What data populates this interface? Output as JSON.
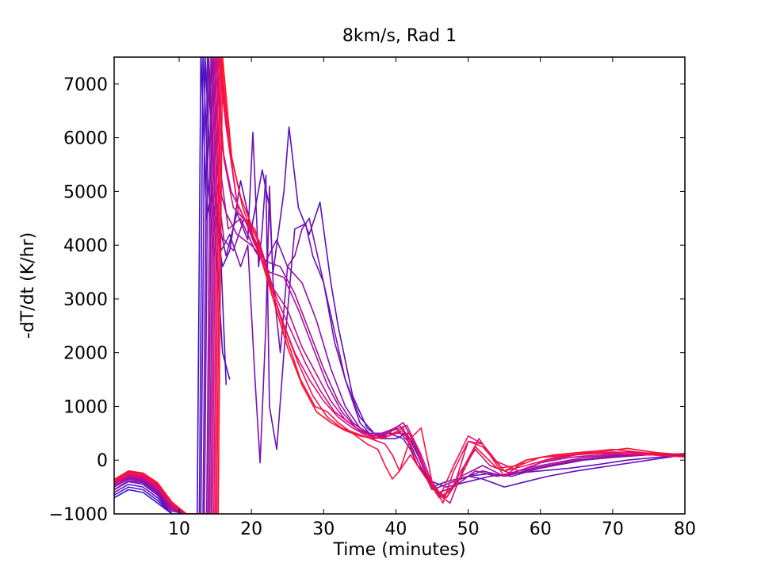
{
  "chart_data": {
    "type": "line",
    "title": "8km/s, Rad 1",
    "xlabel": "Time (minutes)",
    "ylabel": "-dT/dt (K/hr)",
    "xlim": [
      1,
      80
    ],
    "ylim": [
      -1000,
      7500
    ],
    "xticks": [
      10,
      20,
      30,
      40,
      50,
      60,
      70,
      80
    ],
    "yticks": [
      -1000,
      0,
      1000,
      2000,
      3000,
      4000,
      5000,
      6000,
      7000
    ],
    "xtick_labels": [
      "10",
      "20",
      "30",
      "40",
      "50",
      "60",
      "70",
      "80"
    ],
    "ytick_labels": [
      "−1000",
      "0",
      "1000",
      "2000",
      "3000",
      "4000",
      "5000",
      "6000",
      "7000"
    ],
    "grid": false,
    "legend": "none",
    "color_gradient": [
      "#3a10d0",
      "#7a10b8",
      "#ff1010"
    ],
    "series": [
      {
        "color": "#3a10d0",
        "x": [
          1,
          3,
          5,
          7,
          9,
          11,
          12.5,
          13,
          13.8,
          14.5,
          15.2,
          16,
          17
        ],
        "y": [
          -700,
          -550,
          -600,
          -800,
          -1000,
          -1200,
          -1000,
          7600,
          4500,
          5000,
          3800,
          2000,
          1500
        ]
      },
      {
        "color": "#4a10c8",
        "x": [
          1,
          3,
          5,
          7,
          9,
          11,
          12.8,
          13.3,
          14,
          14.8,
          15.5,
          16.5
        ],
        "y": [
          -650,
          -500,
          -550,
          -750,
          -1000,
          -1150,
          -1000,
          7600,
          5200,
          3800,
          4600,
          1400
        ]
      },
      {
        "color": "#5a10c2",
        "x": [
          1,
          3,
          5,
          7,
          9,
          11,
          13,
          13.6,
          14.4,
          15.2,
          16,
          17,
          18.5,
          20,
          21.5,
          22.5,
          23,
          24.5,
          25.2,
          26.5,
          28,
          29.5,
          31,
          32,
          34,
          36,
          38,
          40,
          41.5,
          43,
          45,
          47,
          50,
          52,
          55,
          58,
          61,
          65,
          70,
          75,
          80
        ],
        "y": [
          -600,
          -450,
          -500,
          -700,
          -1000,
          -1100,
          -1000,
          7500,
          5200,
          4300,
          3600,
          3900,
          5200,
          4300,
          5400,
          4700,
          3500,
          5000,
          6200,
          4700,
          4200,
          4800,
          3300,
          2500,
          1200,
          600,
          400,
          400,
          500,
          100,
          -500,
          -400,
          -300,
          -350,
          -500,
          -400,
          -300,
          -200,
          -100,
          0,
          100
        ]
      },
      {
        "color": "#6a10b8",
        "x": [
          1,
          3,
          5,
          7,
          9,
          11,
          13.3,
          13.9,
          14.7,
          15.5,
          16.5,
          18,
          19.5,
          20.2,
          21,
          21.5,
          22,
          22.5,
          23.5,
          24.5,
          26,
          27.5,
          28.5,
          30,
          31.5,
          33,
          35,
          37,
          39,
          41,
          42,
          43,
          45,
          47,
          50,
          53,
          56,
          60,
          64,
          68,
          72,
          76,
          80
        ],
        "y": [
          -550,
          -400,
          -450,
          -650,
          -1000,
          -1050,
          -1000,
          7500,
          5400,
          4400,
          3800,
          4600,
          4100,
          6100,
          3600,
          4300,
          5300,
          1000,
          200,
          2000,
          4300,
          4400,
          3800,
          3300,
          2200,
          1500,
          800,
          500,
          500,
          400,
          200,
          -100,
          -400,
          -500,
          -400,
          -300,
          -250,
          -200,
          -150,
          -80,
          0,
          50,
          100
        ]
      },
      {
        "color": "#7a10b0",
        "x": [
          1,
          3,
          5,
          7,
          9,
          11,
          13.5,
          14.1,
          14.9,
          15.8,
          17,
          18.5,
          19.5,
          20.5,
          21.2,
          22,
          22.5,
          23,
          24,
          25,
          26,
          27,
          28,
          29,
          31,
          33,
          35,
          37,
          39,
          41,
          42.5,
          44,
          46,
          48,
          50,
          52,
          55,
          58,
          62,
          66,
          70,
          75,
          80
        ],
        "y": [
          -550,
          -380,
          -420,
          -620,
          -1000,
          -1000,
          -1000,
          7500,
          5000,
          3900,
          4200,
          3600,
          4000,
          1500,
          -50,
          2500,
          5100,
          3300,
          2000,
          3600,
          3800,
          4300,
          4500,
          3900,
          2700,
          1500,
          700,
          400,
          500,
          500,
          300,
          -200,
          -600,
          -500,
          -300,
          -200,
          -300,
          -200,
          -100,
          0,
          50,
          100,
          80
        ]
      },
      {
        "color": "#8a10a8",
        "x": [
          1,
          3,
          5,
          7,
          9,
          11,
          13.8,
          14.4,
          15.2,
          16.2,
          17.5,
          19,
          20.5,
          22,
          23.5,
          25,
          27,
          29,
          31,
          33,
          35,
          37,
          39,
          41,
          43,
          45,
          47,
          50,
          53,
          56,
          60,
          65,
          70,
          75,
          80
        ],
        "y": [
          -500,
          -350,
          -400,
          -600,
          -950,
          -1000,
          -1000,
          7500,
          5200,
          4100,
          3900,
          4500,
          4000,
          3700,
          4100,
          3600,
          3300,
          2600,
          1700,
          1000,
          600,
          450,
          450,
          550,
          0,
          -550,
          -450,
          -300,
          -250,
          -300,
          -150,
          0,
          80,
          100,
          120
        ]
      },
      {
        "color": "#9a10a0",
        "x": [
          1,
          3,
          5,
          7,
          9,
          11,
          14,
          14.6,
          15.5,
          16.5,
          18,
          20,
          22,
          24,
          26,
          28,
          30,
          32,
          34,
          36,
          38,
          40,
          42,
          44,
          46,
          48,
          51,
          54,
          57,
          61,
          65,
          70,
          75,
          80
        ],
        "y": [
          -500,
          -330,
          -380,
          -570,
          -920,
          -1000,
          -1000,
          7500,
          5100,
          4600,
          4200,
          4000,
          3700,
          3600,
          3100,
          2400,
          1700,
          1100,
          700,
          500,
          500,
          600,
          300,
          -300,
          -600,
          -500,
          -200,
          -300,
          -200,
          -100,
          0,
          60,
          100,
          120
        ]
      },
      {
        "color": "#ab1098",
        "x": [
          1,
          3,
          5,
          7,
          9,
          11,
          14.2,
          14.8,
          15.7,
          16.8,
          18.5,
          20.5,
          22.5,
          24.5,
          26.5,
          28.5,
          30.5,
          32.5,
          34.5,
          36.5,
          38.5,
          40.5,
          42.5,
          44.5,
          46.5,
          49,
          52,
          55,
          58,
          62,
          66,
          70,
          75,
          80
        ],
        "y": [
          -480,
          -320,
          -360,
          -550,
          -900,
          -1000,
          -1000,
          7500,
          5400,
          4300,
          4500,
          3900,
          3500,
          3400,
          2800,
          2100,
          1400,
          900,
          600,
          450,
          500,
          650,
          300,
          -400,
          -700,
          -300,
          -100,
          -300,
          -150,
          -50,
          50,
          100,
          120,
          100
        ]
      },
      {
        "color": "#bc1090",
        "x": [
          1,
          3,
          5,
          7,
          9,
          11,
          14.4,
          15,
          16,
          17.2,
          19,
          21,
          23,
          25,
          27,
          29,
          31,
          33,
          35,
          37,
          39,
          41,
          43,
          45,
          47,
          49,
          51,
          53,
          56,
          60,
          64,
          68,
          72,
          76,
          80
        ],
        "y": [
          -450,
          -300,
          -340,
          -520,
          -880,
          -1000,
          -1000,
          7500,
          5800,
          5000,
          4500,
          4100,
          3200,
          2800,
          2100,
          1600,
          1100,
          750,
          550,
          450,
          500,
          700,
          200,
          -500,
          -700,
          -200,
          200,
          -100,
          -250,
          -50,
          50,
          100,
          150,
          120,
          100
        ]
      },
      {
        "color": "#cc1088",
        "x": [
          1,
          3,
          5,
          7,
          9,
          11,
          14.6,
          15.2,
          16.2,
          17.5,
          19.5,
          21.5,
          23.5,
          25.5,
          27.5,
          29.5,
          31.5,
          33.5,
          35.5,
          37.5,
          39.5,
          41.5,
          43.5,
          45.5,
          47.5,
          49.5,
          51.5,
          53.5,
          57,
          61,
          65,
          70,
          75,
          80
        ],
        "y": [
          -430,
          -280,
          -320,
          -500,
          -860,
          -1000,
          -1000,
          7500,
          5600,
          4700,
          4400,
          3800,
          3000,
          2400,
          1800,
          1300,
          900,
          700,
          500,
          450,
          550,
          650,
          100,
          -600,
          -800,
          -100,
          400,
          0,
          -200,
          0,
          100,
          150,
          130,
          100
        ]
      },
      {
        "color": "#dd1078",
        "x": [
          1,
          3,
          5,
          7,
          9,
          11,
          14.8,
          15.4,
          16.5,
          18,
          20,
          22,
          24,
          26,
          28,
          30,
          32,
          34,
          36,
          38,
          40,
          42,
          44,
          46,
          48,
          50,
          52,
          55,
          58,
          62,
          66,
          70,
          75,
          80
        ],
        "y": [
          -420,
          -260,
          -300,
          -480,
          -840,
          -1000,
          -1000,
          7500,
          6200,
          4800,
          4200,
          3500,
          2700,
          2000,
          1500,
          1100,
          800,
          600,
          450,
          400,
          500,
          500,
          -200,
          -700,
          -500,
          350,
          300,
          -200,
          -100,
          50,
          120,
          150,
          120,
          100
        ]
      },
      {
        "color": "#ee1060",
        "x": [
          1,
          3,
          5,
          7,
          9,
          11,
          15,
          15.6,
          16.8,
          18.2,
          20.5,
          22.5,
          24.5,
          26.5,
          28.5,
          30.5,
          32.5,
          34.5,
          36.5,
          38.5,
          39.5,
          40.5,
          42,
          44,
          46,
          48,
          50,
          52,
          55,
          58,
          62,
          66,
          70,
          75,
          80
        ],
        "y": [
          -400,
          -240,
          -280,
          -460,
          -820,
          -1000,
          -1000,
          7500,
          6000,
          4600,
          4300,
          3300,
          2500,
          1800,
          1200,
          800,
          600,
          500,
          400,
          300,
          100,
          -200,
          100,
          -300,
          -700,
          -100,
          450,
          300,
          -300,
          0,
          100,
          150,
          200,
          130,
          100
        ]
      },
      {
        "color": "#ff1040",
        "x": [
          1,
          3,
          5,
          7,
          9,
          11,
          15.2,
          15.8,
          17,
          18.5,
          20.8,
          22.8,
          24.8,
          26.8,
          28.8,
          30.5,
          32,
          34,
          36,
          37.5,
          38.5,
          39.5,
          40.5,
          42,
          43.5,
          45,
          46.5,
          48,
          50,
          52,
          55,
          58,
          62,
          66,
          70,
          75,
          80
        ],
        "y": [
          -380,
          -220,
          -260,
          -440,
          -800,
          -1000,
          -1000,
          7500,
          5800,
          4900,
          4100,
          3200,
          2300,
          1500,
          1000,
          900,
          700,
          500,
          300,
          200,
          -100,
          -350,
          -200,
          400,
          600,
          -400,
          -800,
          -200,
          350,
          250,
          -200,
          0,
          100,
          150,
          120,
          100,
          60
        ]
      },
      {
        "color": "#ff1020",
        "x": [
          1,
          3,
          5,
          7,
          9,
          11,
          15.4,
          16,
          17.3,
          18.8,
          21,
          23,
          25,
          27,
          29,
          31,
          33,
          35,
          37,
          39,
          41,
          43,
          45,
          47,
          49,
          51,
          54,
          57,
          60,
          64,
          68,
          72,
          76,
          80
        ],
        "y": [
          -360,
          -200,
          -240,
          -420,
          -780,
          -1000,
          -1000,
          7500,
          5600,
          4700,
          3900,
          3000,
          2100,
          1400,
          900,
          700,
          550,
          450,
          400,
          450,
          600,
          -100,
          -500,
          -700,
          -300,
          250,
          -150,
          -100,
          50,
          100,
          150,
          220,
          140,
          100
        ]
      }
    ]
  }
}
